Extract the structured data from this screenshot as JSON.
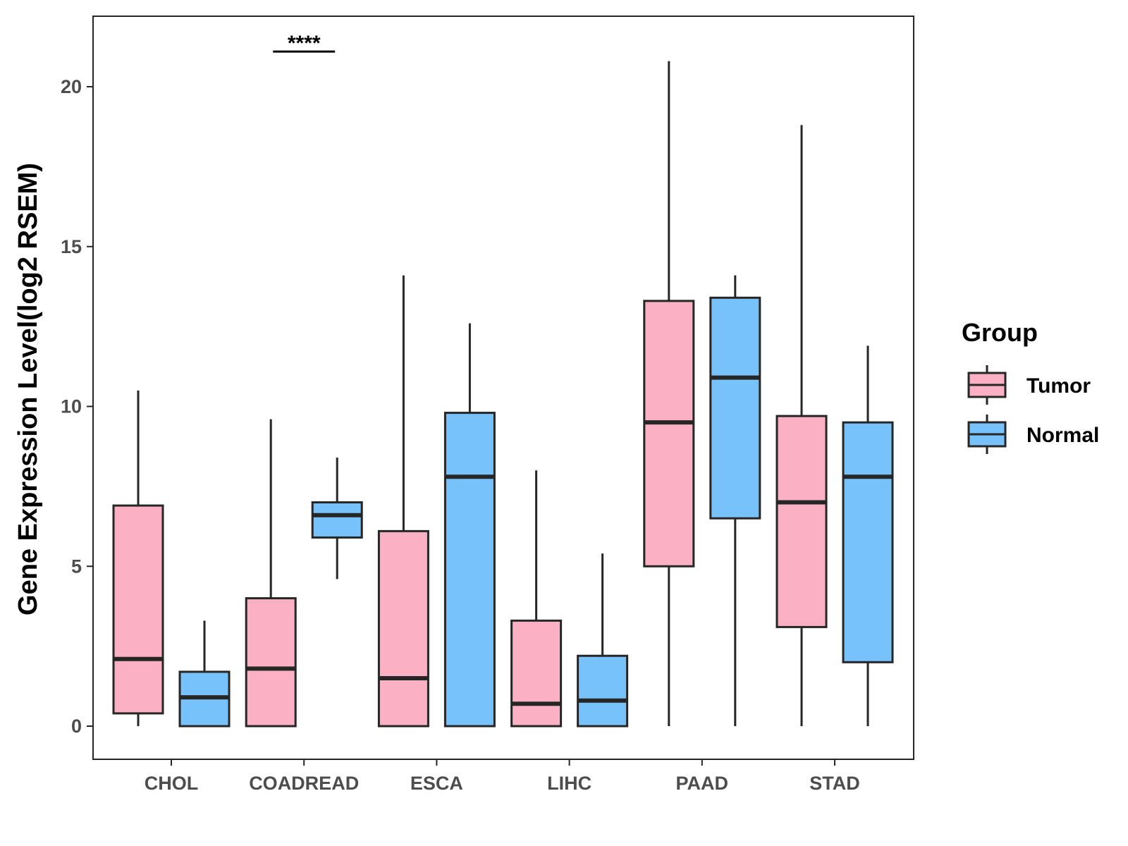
{
  "chart_data": {
    "type": "boxplot",
    "ylabel": "Gene Expression Level(log2 RSEM)",
    "xlabel": "",
    "ylim": [
      -1,
      22
    ],
    "yticks": [
      "0",
      "5",
      "10",
      "15",
      "20"
    ],
    "categories": [
      "CHOL",
      "COADREAD",
      "ESCA",
      "LIHC",
      "PAAD",
      "STAD"
    ],
    "legend": {
      "title": "Group",
      "position": "right",
      "entries": [
        "Tumor",
        "Normal"
      ]
    },
    "colors": {
      "Tumor": "#FBB1C3",
      "Normal": "#77C2FA",
      "stroke": "#262626"
    },
    "series": [
      {
        "name": "Tumor",
        "boxes": [
          {
            "category": "CHOL",
            "min": 0,
            "q1": 0.4,
            "median": 2.1,
            "q3": 6.9,
            "max": 10.5
          },
          {
            "category": "COADREAD",
            "min": 0,
            "q1": 0,
            "median": 1.8,
            "q3": 4.0,
            "max": 9.6
          },
          {
            "category": "ESCA",
            "min": 0,
            "q1": 0,
            "median": 1.5,
            "q3": 6.1,
            "max": 14.1
          },
          {
            "category": "LIHC",
            "min": 0,
            "q1": 0,
            "median": 0.7,
            "q3": 3.3,
            "max": 8.0
          },
          {
            "category": "PAAD",
            "min": 0,
            "q1": 5.0,
            "median": 9.5,
            "q3": 13.3,
            "max": 20.8
          },
          {
            "category": "STAD",
            "min": 0,
            "q1": 3.1,
            "median": 7.0,
            "q3": 9.7,
            "max": 18.8
          }
        ]
      },
      {
        "name": "Normal",
        "boxes": [
          {
            "category": "CHOL",
            "min": 0,
            "q1": 0,
            "median": 0.9,
            "q3": 1.7,
            "max": 3.3
          },
          {
            "category": "COADREAD",
            "min": 4.6,
            "q1": 5.9,
            "median": 6.6,
            "q3": 7.0,
            "max": 8.4
          },
          {
            "category": "ESCA",
            "min": 0,
            "q1": 0,
            "median": 7.8,
            "q3": 9.8,
            "max": 12.6
          },
          {
            "category": "LIHC",
            "min": 0,
            "q1": 0,
            "median": 0.8,
            "q3": 2.2,
            "max": 5.4
          },
          {
            "category": "PAAD",
            "min": 0,
            "q1": 6.5,
            "median": 10.9,
            "q3": 13.4,
            "max": 14.1
          },
          {
            "category": "STAD",
            "min": 0,
            "q1": 2.0,
            "median": 7.8,
            "q3": 9.5,
            "max": 11.9
          }
        ]
      }
    ],
    "annotations": [
      {
        "category": "COADREAD",
        "text": "****",
        "y": 21.1
      }
    ]
  }
}
